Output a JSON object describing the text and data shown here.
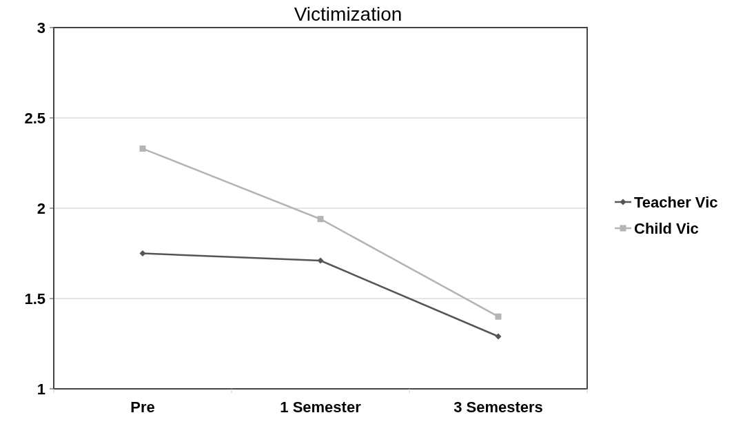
{
  "chart_data": {
    "type": "line",
    "title": "Victimization",
    "categories": [
      "Pre",
      "1 Semester",
      "3 Semesters"
    ],
    "series": [
      {
        "name": "Teacher Vic",
        "color": "#555555",
        "values": [
          1.75,
          1.71,
          1.29
        ],
        "marker": "diamond"
      },
      {
        "name": "Child Vic",
        "color": "#b4b4b4",
        "values": [
          2.33,
          1.94,
          1.4
        ],
        "marker": "square"
      }
    ],
    "ylim": [
      1,
      3
    ],
    "yticks": [
      1,
      1.5,
      2,
      2.5,
      3
    ],
    "grid": "y",
    "legend": "right"
  }
}
